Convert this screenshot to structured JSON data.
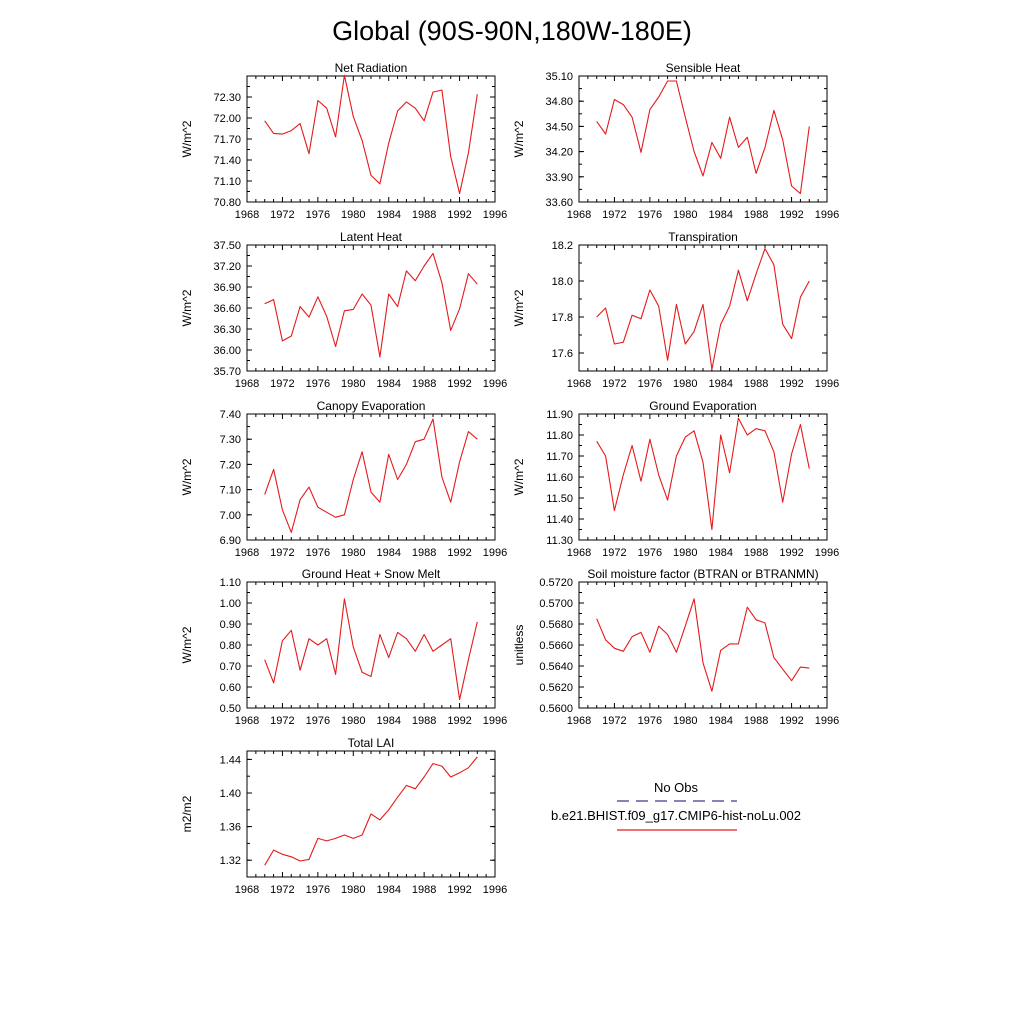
{
  "figure": {
    "title": "Global (90S-90N,180W-180E)"
  },
  "colors": {
    "model_line": "#e41a1c",
    "obs_line": "#3b3b8f",
    "axis": "#000000"
  },
  "legend": {
    "obs_label": "No Obs",
    "model_label": "b.e21.BHIST.f09_g17.CMIP6-hist-noLu.002"
  },
  "chart_data": [
    {
      "type": "line",
      "title": "Net Radiation",
      "ylabel": "W/m^2",
      "xlim": [
        1968,
        1996
      ],
      "ylim": [
        70.8,
        72.6
      ],
      "x_ticks": [
        1968,
        1972,
        1976,
        1980,
        1984,
        1988,
        1992,
        1996
      ],
      "y_ticks": [
        "70.80",
        "71.10",
        "71.40",
        "71.70",
        "72.00",
        "72.30"
      ],
      "series": [
        {
          "x": [
            1970,
            1971,
            1972,
            1973,
            1974,
            1975,
            1976,
            1977,
            1978,
            1979,
            1980,
            1981,
            1982,
            1983,
            1984,
            1985,
            1986,
            1987,
            1988,
            1989,
            1990,
            1991,
            1992,
            1993,
            1994
          ],
          "values": [
            71.96,
            71.78,
            71.77,
            71.82,
            71.92,
            71.49,
            72.25,
            72.14,
            71.73,
            72.61,
            72.02,
            71.68,
            71.18,
            71.06,
            71.64,
            72.1,
            72.23,
            72.14,
            71.96,
            72.37,
            72.4,
            71.45,
            70.92,
            71.5,
            72.34
          ]
        }
      ]
    },
    {
      "type": "line",
      "title": "Sensible Heat",
      "ylabel": "W/m^2",
      "xlim": [
        1968,
        1996
      ],
      "ylim": [
        33.6,
        35.1
      ],
      "x_ticks": [
        1968,
        1972,
        1976,
        1980,
        1984,
        1988,
        1992,
        1996
      ],
      "y_ticks": [
        "33.60",
        "33.90",
        "34.20",
        "34.50",
        "34.80",
        "35.10"
      ],
      "series": [
        {
          "x": [
            1970,
            1971,
            1972,
            1973,
            1974,
            1975,
            1976,
            1977,
            1978,
            1979,
            1980,
            1981,
            1982,
            1983,
            1984,
            1985,
            1986,
            1987,
            1988,
            1989,
            1990,
            1991,
            1992,
            1993,
            1994
          ],
          "values": [
            34.56,
            34.41,
            34.82,
            34.76,
            34.61,
            34.19,
            34.7,
            34.85,
            35.04,
            35.04,
            34.61,
            34.2,
            33.91,
            34.31,
            34.12,
            34.61,
            34.25,
            34.37,
            33.94,
            34.25,
            34.69,
            34.34,
            33.79,
            33.7,
            34.5
          ]
        }
      ]
    },
    {
      "type": "line",
      "title": "Latent Heat",
      "ylabel": "W/m^2",
      "xlim": [
        1968,
        1996
      ],
      "ylim": [
        35.7,
        37.5
      ],
      "x_ticks": [
        1968,
        1972,
        1976,
        1980,
        1984,
        1988,
        1992,
        1996
      ],
      "y_ticks": [
        "35.70",
        "36.00",
        "36.30",
        "36.60",
        "36.90",
        "37.20",
        "37.50"
      ],
      "series": [
        {
          "x": [
            1970,
            1971,
            1972,
            1973,
            1974,
            1975,
            1976,
            1977,
            1978,
            1979,
            1980,
            1981,
            1982,
            1983,
            1984,
            1985,
            1986,
            1987,
            1988,
            1989,
            1990,
            1991,
            1992,
            1993,
            1994
          ],
          "values": [
            36.66,
            36.72,
            36.13,
            36.2,
            36.62,
            36.47,
            36.76,
            36.48,
            36.05,
            36.56,
            36.58,
            36.8,
            36.64,
            35.9,
            36.8,
            36.62,
            37.13,
            36.99,
            37.2,
            37.38,
            36.96,
            36.28,
            36.59,
            37.09,
            36.94
          ]
        }
      ]
    },
    {
      "type": "line",
      "title": "Transpiration",
      "ylabel": "W/m^2",
      "xlim": [
        1968,
        1996
      ],
      "ylim": [
        17.5,
        18.2
      ],
      "x_ticks": [
        1968,
        1972,
        1976,
        1980,
        1984,
        1988,
        1992,
        1996
      ],
      "y_ticks": [
        "17.6",
        "17.8",
        "18.0",
        "18.2"
      ],
      "series": [
        {
          "x": [
            1970,
            1971,
            1972,
            1973,
            1974,
            1975,
            1976,
            1977,
            1978,
            1979,
            1980,
            1981,
            1982,
            1983,
            1984,
            1985,
            1986,
            1987,
            1988,
            1989,
            1990,
            1991,
            1992,
            1993,
            1994
          ],
          "values": [
            17.8,
            17.85,
            17.65,
            17.66,
            17.81,
            17.79,
            17.95,
            17.86,
            17.56,
            17.87,
            17.65,
            17.72,
            17.87,
            17.51,
            17.76,
            17.86,
            18.06,
            17.89,
            18.04,
            18.18,
            18.09,
            17.76,
            17.68,
            17.91,
            18.0
          ]
        }
      ]
    },
    {
      "type": "line",
      "title": "Canopy Evaporation",
      "ylabel": "W/m^2",
      "xlim": [
        1968,
        1996
      ],
      "ylim": [
        6.9,
        7.4
      ],
      "x_ticks": [
        1968,
        1972,
        1976,
        1980,
        1984,
        1988,
        1992,
        1996
      ],
      "y_ticks": [
        "6.90",
        "7.00",
        "7.10",
        "7.20",
        "7.30",
        "7.40"
      ],
      "series": [
        {
          "x": [
            1970,
            1971,
            1972,
            1973,
            1974,
            1975,
            1976,
            1977,
            1978,
            1979,
            1980,
            1981,
            1982,
            1983,
            1984,
            1985,
            1986,
            1987,
            1988,
            1989,
            1990,
            1991,
            1992,
            1993,
            1994
          ],
          "values": [
            7.08,
            7.18,
            7.02,
            6.93,
            7.06,
            7.11,
            7.03,
            7.01,
            6.99,
            7.0,
            7.14,
            7.25,
            7.09,
            7.05,
            7.24,
            7.14,
            7.2,
            7.29,
            7.3,
            7.38,
            7.15,
            7.05,
            7.21,
            7.33,
            7.3
          ]
        }
      ]
    },
    {
      "type": "line",
      "title": "Ground Evaporation",
      "ylabel": "W/m^2",
      "xlim": [
        1968,
        1996
      ],
      "ylim": [
        11.3,
        11.9
      ],
      "x_ticks": [
        1968,
        1972,
        1976,
        1980,
        1984,
        1988,
        1992,
        1996
      ],
      "y_ticks": [
        "11.30",
        "11.40",
        "11.50",
        "11.60",
        "11.70",
        "11.80",
        "11.90"
      ],
      "series": [
        {
          "x": [
            1970,
            1971,
            1972,
            1973,
            1974,
            1975,
            1976,
            1977,
            1978,
            1979,
            1980,
            1981,
            1982,
            1983,
            1984,
            1985,
            1986,
            1987,
            1988,
            1989,
            1990,
            1991,
            1992,
            1993,
            1994
          ],
          "values": [
            11.77,
            11.7,
            11.44,
            11.61,
            11.75,
            11.58,
            11.78,
            11.61,
            11.49,
            11.7,
            11.79,
            11.82,
            11.67,
            11.35,
            11.8,
            11.62,
            11.88,
            11.8,
            11.83,
            11.82,
            11.72,
            11.48,
            11.71,
            11.85,
            11.64
          ]
        }
      ]
    },
    {
      "type": "line",
      "title": "Ground Heat + Snow Melt",
      "ylabel": "W/m^2",
      "xlim": [
        1968,
        1996
      ],
      "ylim": [
        0.5,
        1.1
      ],
      "x_ticks": [
        1968,
        1972,
        1976,
        1980,
        1984,
        1988,
        1992,
        1996
      ],
      "y_ticks": [
        "0.50",
        "0.60",
        "0.70",
        "0.80",
        "0.90",
        "1.00",
        "1.10"
      ],
      "series": [
        {
          "x": [
            1970,
            1971,
            1972,
            1973,
            1974,
            1975,
            1976,
            1977,
            1978,
            1979,
            1980,
            1981,
            1982,
            1983,
            1984,
            1985,
            1986,
            1987,
            1988,
            1989,
            1990,
            1991,
            1992,
            1993,
            1994
          ],
          "values": [
            0.73,
            0.62,
            0.82,
            0.87,
            0.68,
            0.83,
            0.8,
            0.83,
            0.66,
            1.02,
            0.79,
            0.67,
            0.65,
            0.85,
            0.74,
            0.86,
            0.83,
            0.77,
            0.85,
            0.77,
            0.8,
            0.83,
            0.54,
            0.73,
            0.91
          ]
        }
      ]
    },
    {
      "type": "line",
      "title": "Soil moisture factor (BTRAN or BTRANMN)",
      "ylabel": "unitless",
      "xlim": [
        1968,
        1996
      ],
      "ylim": [
        0.56,
        0.572
      ],
      "x_ticks": [
        1968,
        1972,
        1976,
        1980,
        1984,
        1988,
        1992,
        1996
      ],
      "y_ticks": [
        "0.5600",
        "0.5620",
        "0.5640",
        "0.5660",
        "0.5680",
        "0.5700",
        "0.5720"
      ],
      "series": [
        {
          "x": [
            1970,
            1971,
            1972,
            1973,
            1974,
            1975,
            1976,
            1977,
            1978,
            1979,
            1980,
            1981,
            1982,
            1983,
            1984,
            1985,
            1986,
            1987,
            1988,
            1989,
            1990,
            1991,
            1992,
            1993,
            1994
          ],
          "values": [
            0.5685,
            0.5665,
            0.5657,
            0.5654,
            0.5668,
            0.5672,
            0.5653,
            0.5678,
            0.567,
            0.5653,
            0.5678,
            0.5704,
            0.5643,
            0.5616,
            0.5655,
            0.5661,
            0.5661,
            0.5696,
            0.5684,
            0.5681,
            0.5648,
            0.5637,
            0.5626,
            0.5639,
            0.5638
          ]
        }
      ]
    },
    {
      "type": "line",
      "title": "Total LAI",
      "ylabel": "m2/m2",
      "xlim": [
        1968,
        1996
      ],
      "ylim": [
        1.3,
        1.45
      ],
      "x_ticks": [
        1968,
        1972,
        1976,
        1980,
        1984,
        1988,
        1992,
        1996
      ],
      "y_ticks": [
        "1.32",
        "1.36",
        "1.40",
        "1.44"
      ],
      "series": [
        {
          "x": [
            1970,
            1971,
            1972,
            1973,
            1974,
            1975,
            1976,
            1977,
            1978,
            1979,
            1980,
            1981,
            1982,
            1983,
            1984,
            1985,
            1986,
            1987,
            1988,
            1989,
            1990,
            1991,
            1992,
            1993,
            1994
          ],
          "values": [
            1.314,
            1.332,
            1.327,
            1.324,
            1.319,
            1.321,
            1.346,
            1.343,
            1.346,
            1.35,
            1.346,
            1.35,
            1.375,
            1.368,
            1.38,
            1.395,
            1.409,
            1.405,
            1.419,
            1.435,
            1.432,
            1.419,
            1.424,
            1.43,
            1.443
          ]
        }
      ]
    }
  ]
}
